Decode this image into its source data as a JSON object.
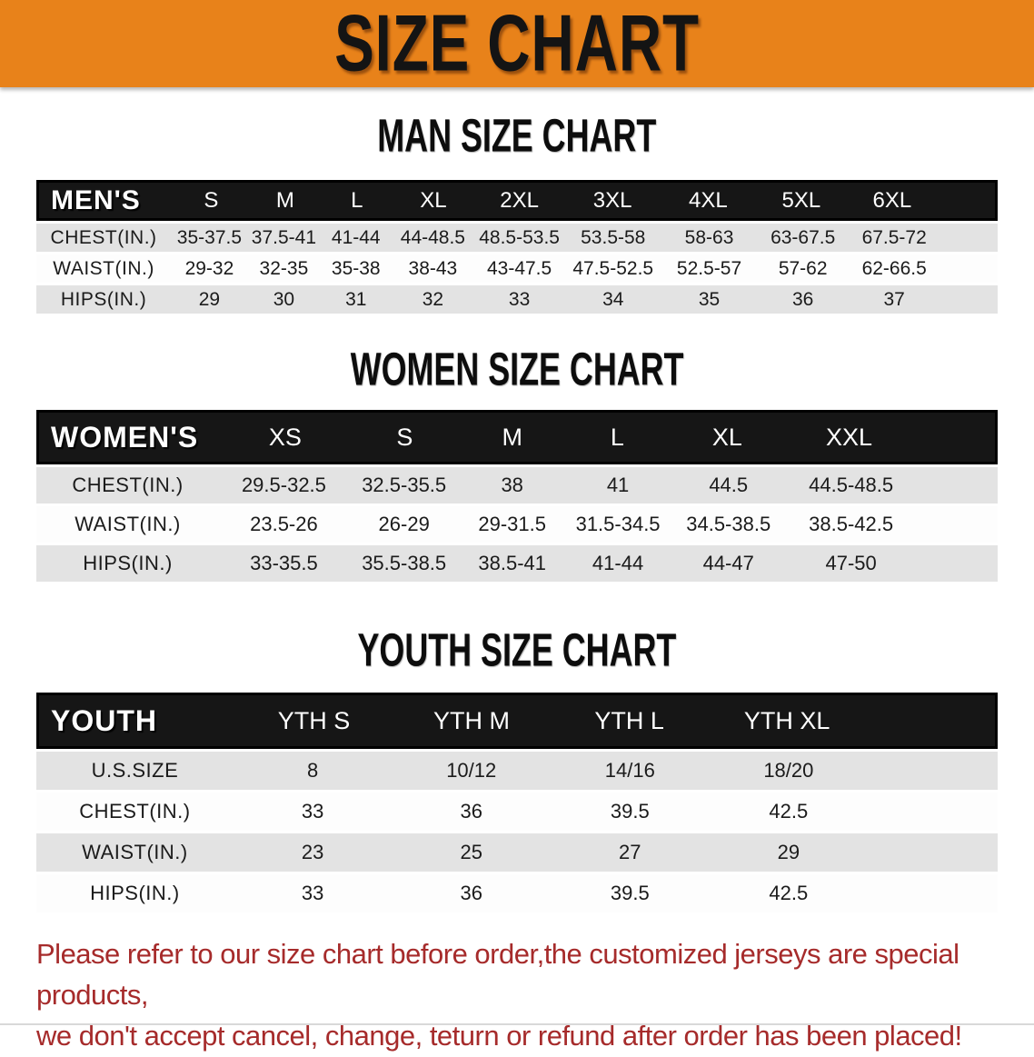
{
  "banner": {
    "title": "SIZE CHART",
    "bg_color": "#E8821A",
    "text_color": "#141414"
  },
  "sections": [
    {
      "heading": "MAN SIZE CHART",
      "table": {
        "corner_label": "MEN'S",
        "columns": [
          "S",
          "M",
          "L",
          "XL",
          "2XL",
          "3XL",
          "4XL",
          "5XL",
          "6XL"
        ],
        "rows": [
          {
            "label": "CHEST(IN.)",
            "values": [
              "35-37.5",
              "37.5-41",
              "41-44",
              "44-48.5",
              "48.5-53.5",
              "53.5-58",
              "58-63",
              "63-67.5",
              "67.5-72"
            ]
          },
          {
            "label": "WAIST(IN.)",
            "values": [
              "29-32",
              "32-35",
              "35-38",
              "38-43",
              "43-47.5",
              "47.5-52.5",
              "52.5-57",
              "57-62",
              "62-66.5"
            ]
          },
          {
            "label": "HIPS(IN.)",
            "values": [
              "29",
              "30",
              "31",
              "32",
              "33",
              "34",
              "35",
              "36",
              "37"
            ]
          }
        ]
      }
    },
    {
      "heading": "WOMEN SIZE CHART",
      "table": {
        "corner_label": "WOMEN'S",
        "columns": [
          "XS",
          "S",
          "M",
          "L",
          "XL",
          "XXL"
        ],
        "rows": [
          {
            "label": "CHEST(IN.)",
            "values": [
              "29.5-32.5",
              "32.5-35.5",
              "38",
              "41",
              "44.5",
              "44.5-48.5"
            ]
          },
          {
            "label": "WAIST(IN.)",
            "values": [
              "23.5-26",
              "26-29",
              "29-31.5",
              "31.5-34.5",
              "34.5-38.5",
              "38.5-42.5"
            ]
          },
          {
            "label": "HIPS(IN.)",
            "values": [
              "33-35.5",
              "35.5-38.5",
              "38.5-41",
              "41-44",
              "44-47",
              "47-50"
            ]
          }
        ]
      }
    },
    {
      "heading": "YOUTH SIZE CHART",
      "table": {
        "corner_label": "YOUTH",
        "columns": [
          "YTH S",
          "YTH M",
          "YTH L",
          "YTH XL"
        ],
        "rows": [
          {
            "label": "U.S.SIZE",
            "values": [
              "8",
              "10/12",
              "14/16",
              "18/20"
            ]
          },
          {
            "label": "CHEST(IN.)",
            "values": [
              "33",
              "36",
              "39.5",
              "42.5"
            ]
          },
          {
            "label": "WAIST(IN.)",
            "values": [
              "23",
              "25",
              "27",
              "29"
            ]
          },
          {
            "label": "HIPS(IN.)",
            "values": [
              "33",
              "36",
              "39.5",
              "42.5"
            ]
          }
        ]
      }
    }
  ],
  "disclaimer": {
    "lines": [
      "Please refer to our size chart before order,the customized jerseys are special products,",
      "we don't accept cancel, change, teturn or refund after order has been placed!"
    ],
    "color": "#A62B2B"
  }
}
